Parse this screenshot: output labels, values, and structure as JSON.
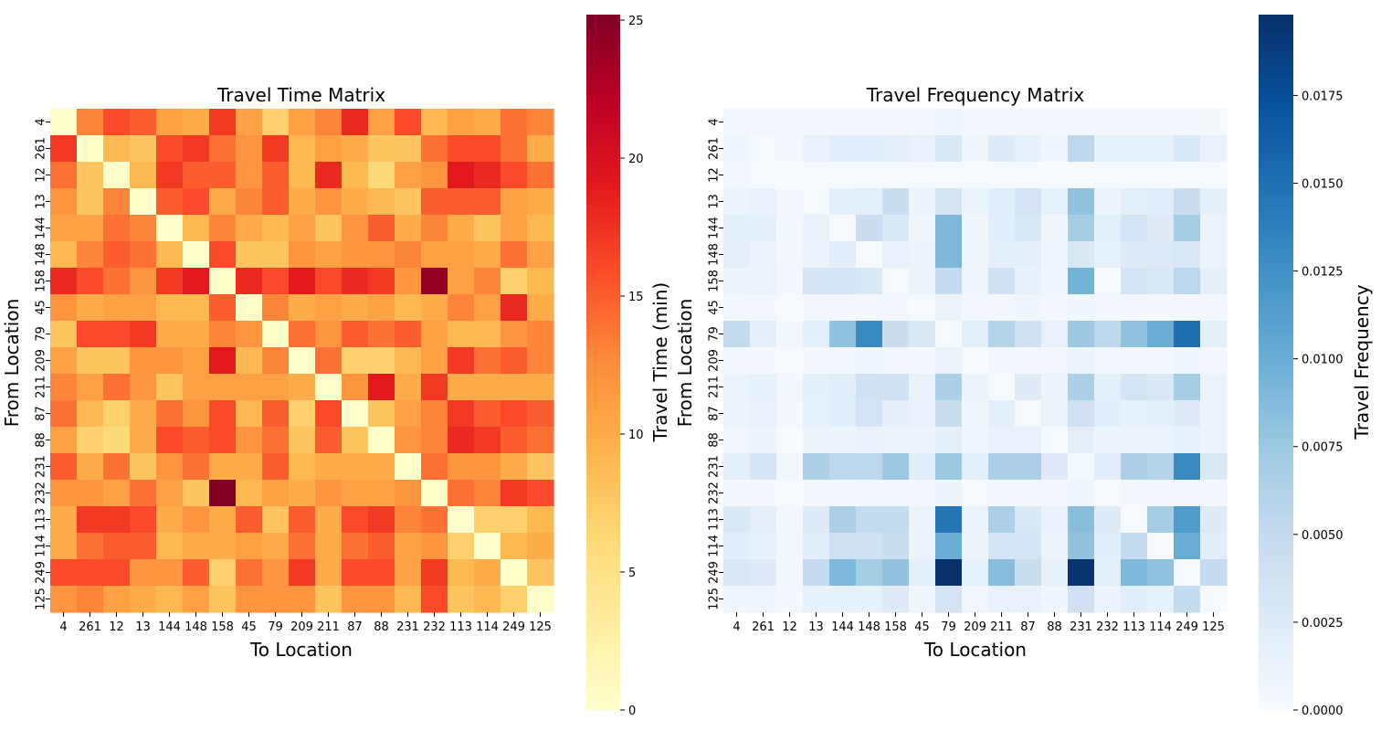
{
  "chart_data": [
    {
      "type": "heatmap",
      "title": "Travel Time Matrix",
      "xlabel": "To Location",
      "ylabel": "From Location",
      "colorbar_label": "Travel Time (min)",
      "colormap": "YlOrRd",
      "vmin": 0,
      "vmax": 25.2,
      "colorbar_ticks": [
        0,
        5,
        10,
        15,
        20,
        25
      ],
      "labels": [
        "4",
        "261",
        "12",
        "13",
        "144",
        "148",
        "158",
        "45",
        "79",
        "209",
        "211",
        "87",
        "88",
        "231",
        "232",
        "113",
        "114",
        "249",
        "125"
      ],
      "values": [
        [
          0,
          13,
          16,
          15,
          11,
          10,
          17,
          11,
          7,
          11,
          13,
          18,
          11,
          16,
          9,
          11,
          10,
          14,
          13
        ],
        [
          17,
          0,
          9,
          8,
          16,
          17,
          14,
          12,
          17,
          9,
          11,
          10,
          8,
          8,
          14,
          16,
          16,
          14,
          10
        ],
        [
          14,
          8,
          0,
          9,
          17,
          15,
          15,
          12,
          15,
          9,
          18,
          9,
          6,
          11,
          12,
          19,
          18,
          16,
          14
        ],
        [
          12,
          8,
          13,
          0,
          15,
          16,
          10,
          13,
          15,
          10,
          12,
          10,
          9,
          8,
          15,
          15,
          15,
          11,
          10
        ],
        [
          11,
          11,
          14,
          13,
          0,
          9,
          13,
          10,
          9,
          11,
          8,
          12,
          15,
          10,
          13,
          10,
          8,
          11,
          9
        ],
        [
          9,
          13,
          15,
          14,
          9,
          0,
          16,
          8,
          8,
          12,
          11,
          12,
          12,
          13,
          11,
          11,
          10,
          14,
          11
        ],
        [
          18,
          16,
          14,
          12,
          17,
          19,
          0,
          18,
          16,
          19,
          16,
          18,
          17,
          12,
          24,
          11,
          13,
          7,
          9
        ],
        [
          12,
          10,
          11,
          11,
          9,
          9,
          15,
          0,
          13,
          10,
          11,
          10,
          11,
          9,
          10,
          13,
          11,
          18,
          10
        ],
        [
          8,
          16,
          16,
          17,
          10,
          10,
          13,
          12,
          0,
          14,
          12,
          15,
          14,
          15,
          11,
          9,
          9,
          12,
          13
        ],
        [
          11,
          8,
          8,
          12,
          12,
          11,
          19,
          9,
          13,
          0,
          14,
          7,
          7,
          9,
          11,
          17,
          14,
          15,
          13
        ],
        [
          13,
          11,
          14,
          12,
          8,
          11,
          11,
          11,
          11,
          10,
          0,
          12,
          19,
          10,
          17,
          10,
          10,
          10,
          10
        ],
        [
          14,
          9,
          7,
          10,
          14,
          12,
          16,
          9,
          15,
          7,
          16,
          0,
          8,
          11,
          13,
          17,
          15,
          16,
          15
        ],
        [
          11,
          7,
          6,
          10,
          16,
          15,
          16,
          12,
          14,
          8,
          15,
          8,
          0,
          12,
          13,
          18,
          17,
          15,
          14
        ],
        [
          15,
          10,
          14,
          8,
          12,
          14,
          10,
          10,
          15,
          9,
          10,
          10,
          10,
          0,
          14,
          12,
          12,
          10,
          8
        ],
        [
          12,
          12,
          11,
          14,
          11,
          8,
          25,
          9,
          11,
          10,
          12,
          11,
          11,
          12,
          0,
          14,
          13,
          17,
          16
        ],
        [
          10,
          17,
          17,
          16,
          10,
          12,
          10,
          15,
          8,
          15,
          10,
          16,
          17,
          13,
          14,
          0,
          7,
          7,
          9
        ],
        [
          10,
          14,
          15,
          15,
          9,
          10,
          10,
          11,
          10,
          14,
          10,
          14,
          15,
          11,
          12,
          7,
          0,
          9,
          10
        ],
        [
          16,
          16,
          16,
          12,
          12,
          15,
          7,
          14,
          12,
          17,
          10,
          16,
          16,
          11,
          17,
          9,
          10,
          0,
          8
        ],
        [
          12,
          13,
          11,
          10,
          9,
          11,
          8,
          12,
          12,
          12,
          8,
          12,
          12,
          9,
          16,
          8,
          9,
          7,
          0
        ]
      ]
    },
    {
      "type": "heatmap",
      "title": "Travel Frequency Matrix",
      "xlabel": "To Location",
      "ylabel": "From Location",
      "colorbar_label": "Travel Frequency",
      "colormap": "Blues",
      "vmin": 0,
      "vmax": 0.0198,
      "colorbar_ticks": [
        "0.0000",
        "0.0025",
        "0.0050",
        "0.0075",
        "0.0100",
        "0.0125",
        "0.0150",
        "0.0175"
      ],
      "labels": [
        "4",
        "261",
        "12",
        "13",
        "144",
        "148",
        "158",
        "45",
        "79",
        "209",
        "211",
        "87",
        "88",
        "231",
        "232",
        "113",
        "114",
        "249",
        "125"
      ],
      "values": [
        [
          0.0004,
          0.0004,
          0.0004,
          0.0004,
          0.0005,
          0.0006,
          0.0004,
          0.0004,
          0.0008,
          0.0004,
          0.0004,
          0.0004,
          0.0004,
          0.0006,
          0.0004,
          0.0004,
          0.0004,
          0.0006,
          0.0003
        ],
        [
          0.0008,
          0.0002,
          0.0004,
          0.0014,
          0.0022,
          0.0022,
          0.002,
          0.0014,
          0.003,
          0.0008,
          0.0025,
          0.0016,
          0.0008,
          0.0055,
          0.0016,
          0.0016,
          0.0016,
          0.003,
          0.0014
        ],
        [
          0.0004,
          0.0002,
          0.0002,
          0.0002,
          0.0002,
          0.0002,
          0.0002,
          0.0002,
          0.0002,
          0.0002,
          0.0002,
          0.0002,
          0.0002,
          0.0002,
          0.0002,
          0.0002,
          0.0002,
          0.0002,
          0.0002
        ],
        [
          0.001,
          0.0014,
          0.0004,
          0.0002,
          0.0018,
          0.002,
          0.0045,
          0.001,
          0.0035,
          0.001,
          0.0022,
          0.0035,
          0.0016,
          0.008,
          0.0012,
          0.002,
          0.0022,
          0.0045,
          0.0018
        ],
        [
          0.002,
          0.0018,
          0.0004,
          0.0014,
          0.0001,
          0.0045,
          0.003,
          0.0008,
          0.009,
          0.0008,
          0.0022,
          0.003,
          0.0008,
          0.007,
          0.002,
          0.0035,
          0.0025,
          0.007,
          0.0012
        ],
        [
          0.0018,
          0.001,
          0.0004,
          0.0012,
          0.0022,
          0.0002,
          0.0014,
          0.001,
          0.009,
          0.0008,
          0.0018,
          0.0018,
          0.0008,
          0.003,
          0.0016,
          0.0025,
          0.0025,
          0.003,
          0.0012
        ],
        [
          0.001,
          0.0012,
          0.0004,
          0.0035,
          0.0035,
          0.003,
          0.0002,
          0.001,
          0.005,
          0.0008,
          0.004,
          0.0016,
          0.0008,
          0.0095,
          0.0002,
          0.0035,
          0.003,
          0.0055,
          0.0018
        ],
        [
          0.0004,
          0.0004,
          0.0002,
          0.0004,
          0.0004,
          0.0004,
          0.0004,
          0.0002,
          0.0012,
          0.0004,
          0.0004,
          0.0008,
          0.0004,
          0.0008,
          0.0004,
          0.0004,
          0.0004,
          0.0006,
          0.0004
        ],
        [
          0.005,
          0.0018,
          0.0004,
          0.0018,
          0.008,
          0.013,
          0.0045,
          0.003,
          0.0002,
          0.002,
          0.006,
          0.004,
          0.0014,
          0.0075,
          0.0055,
          0.008,
          0.01,
          0.015,
          0.0018
        ],
        [
          0.0004,
          0.0004,
          0.0002,
          0.0004,
          0.0004,
          0.0008,
          0.0004,
          0.0004,
          0.0012,
          0.0002,
          0.0006,
          0.0004,
          0.0004,
          0.001,
          0.0006,
          0.0004,
          0.0004,
          0.0008,
          0.0004
        ],
        [
          0.0012,
          0.0016,
          0.0004,
          0.0018,
          0.0022,
          0.004,
          0.004,
          0.0014,
          0.0065,
          0.001,
          0.0002,
          0.0025,
          0.001,
          0.0065,
          0.0018,
          0.0035,
          0.003,
          0.007,
          0.0012
        ],
        [
          0.001,
          0.0014,
          0.0004,
          0.0016,
          0.0022,
          0.0035,
          0.0018,
          0.0014,
          0.0045,
          0.0008,
          0.0018,
          0.0002,
          0.0012,
          0.004,
          0.0022,
          0.0016,
          0.0018,
          0.0025,
          0.001
        ],
        [
          0.0006,
          0.001,
          0.0002,
          0.0012,
          0.001,
          0.0014,
          0.0012,
          0.001,
          0.002,
          0.0008,
          0.0014,
          0.0014,
          0.0002,
          0.002,
          0.001,
          0.0012,
          0.0012,
          0.0016,
          0.001
        ],
        [
          0.002,
          0.0035,
          0.0004,
          0.0065,
          0.0055,
          0.0055,
          0.0075,
          0.0022,
          0.0075,
          0.002,
          0.0065,
          0.0065,
          0.0025,
          0.0002,
          0.0022,
          0.0065,
          0.006,
          0.013,
          0.003
        ],
        [
          0.0004,
          0.0004,
          0.0002,
          0.0004,
          0.0004,
          0.0006,
          0.0004,
          0.0004,
          0.001,
          0.0002,
          0.0004,
          0.0004,
          0.0004,
          0.0008,
          0.0002,
          0.0004,
          0.0004,
          0.0006,
          0.0004
        ],
        [
          0.003,
          0.002,
          0.0004,
          0.0025,
          0.0065,
          0.005,
          0.005,
          0.0012,
          0.0145,
          0.0012,
          0.0065,
          0.003,
          0.0014,
          0.0085,
          0.0025,
          0.0001,
          0.007,
          0.0115,
          0.0025
        ],
        [
          0.0022,
          0.0016,
          0.0004,
          0.0022,
          0.004,
          0.004,
          0.0045,
          0.0012,
          0.01,
          0.0012,
          0.0035,
          0.0035,
          0.0012,
          0.008,
          0.0022,
          0.005,
          0.0001,
          0.01,
          0.0022
        ],
        [
          0.003,
          0.0025,
          0.0004,
          0.005,
          0.009,
          0.007,
          0.008,
          0.0018,
          0.0198,
          0.0016,
          0.0085,
          0.0045,
          0.0016,
          0.0195,
          0.002,
          0.009,
          0.008,
          0.0002,
          0.005
        ],
        [
          0.0008,
          0.0008,
          0.0004,
          0.0016,
          0.0016,
          0.0016,
          0.0025,
          0.0008,
          0.0035,
          0.0006,
          0.0014,
          0.0014,
          0.0008,
          0.004,
          0.001,
          0.0022,
          0.0016,
          0.005,
          0.0002
        ]
      ]
    }
  ]
}
